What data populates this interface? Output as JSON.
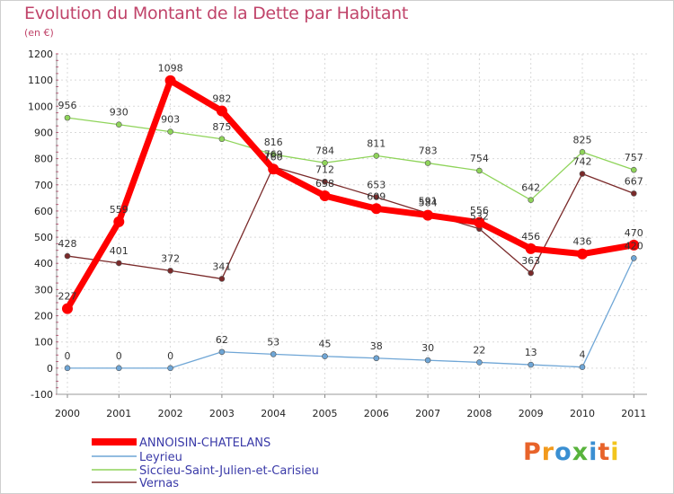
{
  "chart_data": {
    "type": "line",
    "title": "Evolution du Montant de la Dette par Habitant",
    "subtitle": "(en €)",
    "x": [
      "2000",
      "2001",
      "2002",
      "2003",
      "2004",
      "2005",
      "2006",
      "2007",
      "2008",
      "2009",
      "2010",
      "2011"
    ],
    "ylim": [
      -100,
      1200
    ],
    "yticks": [
      -100,
      0,
      100,
      200,
      300,
      400,
      500,
      600,
      700,
      800,
      900,
      1000,
      1100,
      1200
    ],
    "grid": true,
    "legend_position": "bottom-left",
    "series": [
      {
        "name": "ANNOISIN-CHATELANS",
        "color": "#ff0000",
        "values": [
          227,
          559,
          1098,
          982,
          760,
          658,
          609,
          584,
          556,
          456,
          436,
          470
        ],
        "labels": [
          "227",
          "559",
          "1098",
          "982",
          "760",
          "658",
          "609",
          "584",
          "556",
          "456",
          "436",
          "470"
        ]
      },
      {
        "name": "Leyrieu",
        "color": "#6fa6d6",
        "values": [
          0,
          0,
          0,
          62,
          53,
          45,
          38,
          30,
          22,
          13,
          4,
          420
        ],
        "labels": [
          "0",
          "0",
          "0",
          "62",
          "53",
          "45",
          "38",
          "30",
          "22",
          "13",
          "4",
          "420"
        ]
      },
      {
        "name": "Siccieu-Saint-Julien-et-Carisieu",
        "color": "#8fd45a",
        "values": [
          956,
          930,
          903,
          875,
          816,
          784,
          811,
          783,
          754,
          642,
          825,
          757
        ],
        "labels": [
          "956",
          "930",
          "903",
          "875",
          "816",
          "784",
          "811",
          "783",
          "754",
          "642",
          "825",
          "757"
        ]
      },
      {
        "name": "Vernas",
        "color": "#7a2a2a",
        "values": [
          428,
          401,
          372,
          341,
          769,
          712,
          653,
          591,
          532,
          363,
          742,
          667
        ],
        "labels": [
          "428",
          "401",
          "372",
          "341",
          "769",
          "712",
          "653",
          "591",
          "532",
          "363",
          "742",
          "667"
        ]
      }
    ]
  },
  "branding": {
    "logo_letters": [
      "P",
      "r",
      "o",
      "x",
      "i",
      "t",
      "i"
    ],
    "logo_colors": [
      "#e8632a",
      "#f29a1d",
      "#3a8fd2",
      "#58b33c",
      "#3a8fd2",
      "#e8632a",
      "#f2c51d"
    ]
  }
}
